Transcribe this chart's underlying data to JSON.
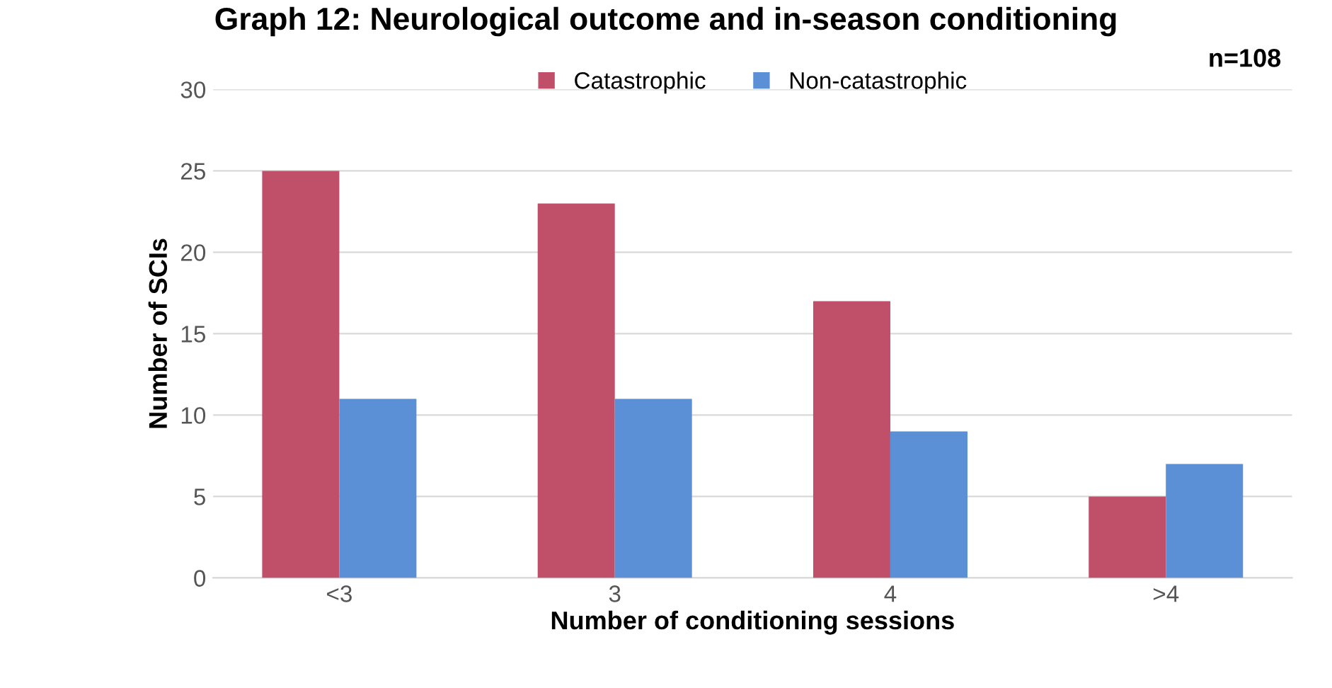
{
  "chart_data": {
    "type": "bar",
    "title": "Graph 12: Neurological outcome and in-season conditioning",
    "xlabel": "Number of conditioning sessions",
    "ylabel": "Number of SCIs",
    "categories": [
      "<3",
      "3",
      "4",
      ">4"
    ],
    "series": [
      {
        "name": "Catastrophic",
        "color": "#c0506a",
        "values": [
          25,
          23,
          17,
          5
        ]
      },
      {
        "name": "Non-catastrophic",
        "color": "#5b8fd6",
        "values": [
          11,
          11,
          9,
          7
        ]
      }
    ],
    "ylim": [
      0,
      30
    ],
    "yticks": [
      0,
      5,
      10,
      15,
      20,
      25,
      30
    ],
    "grid": "y",
    "legend": "top",
    "annotations": [
      "n=108"
    ]
  }
}
